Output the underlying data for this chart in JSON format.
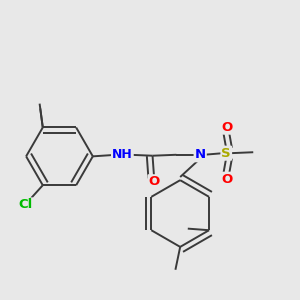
{
  "background_color": "#e8e8e8",
  "bond_color": "#3a3a3a",
  "atom_colors": {
    "N": "#0000ff",
    "O": "#ff0000",
    "Cl": "#00bb00",
    "S": "#aaaa00",
    "C": "#3a3a3a",
    "H": "#808080"
  },
  "bond_lw": 1.4,
  "double_sep": 0.018,
  "font_size_atom": 9.5,
  "font_size_label": 8.5
}
